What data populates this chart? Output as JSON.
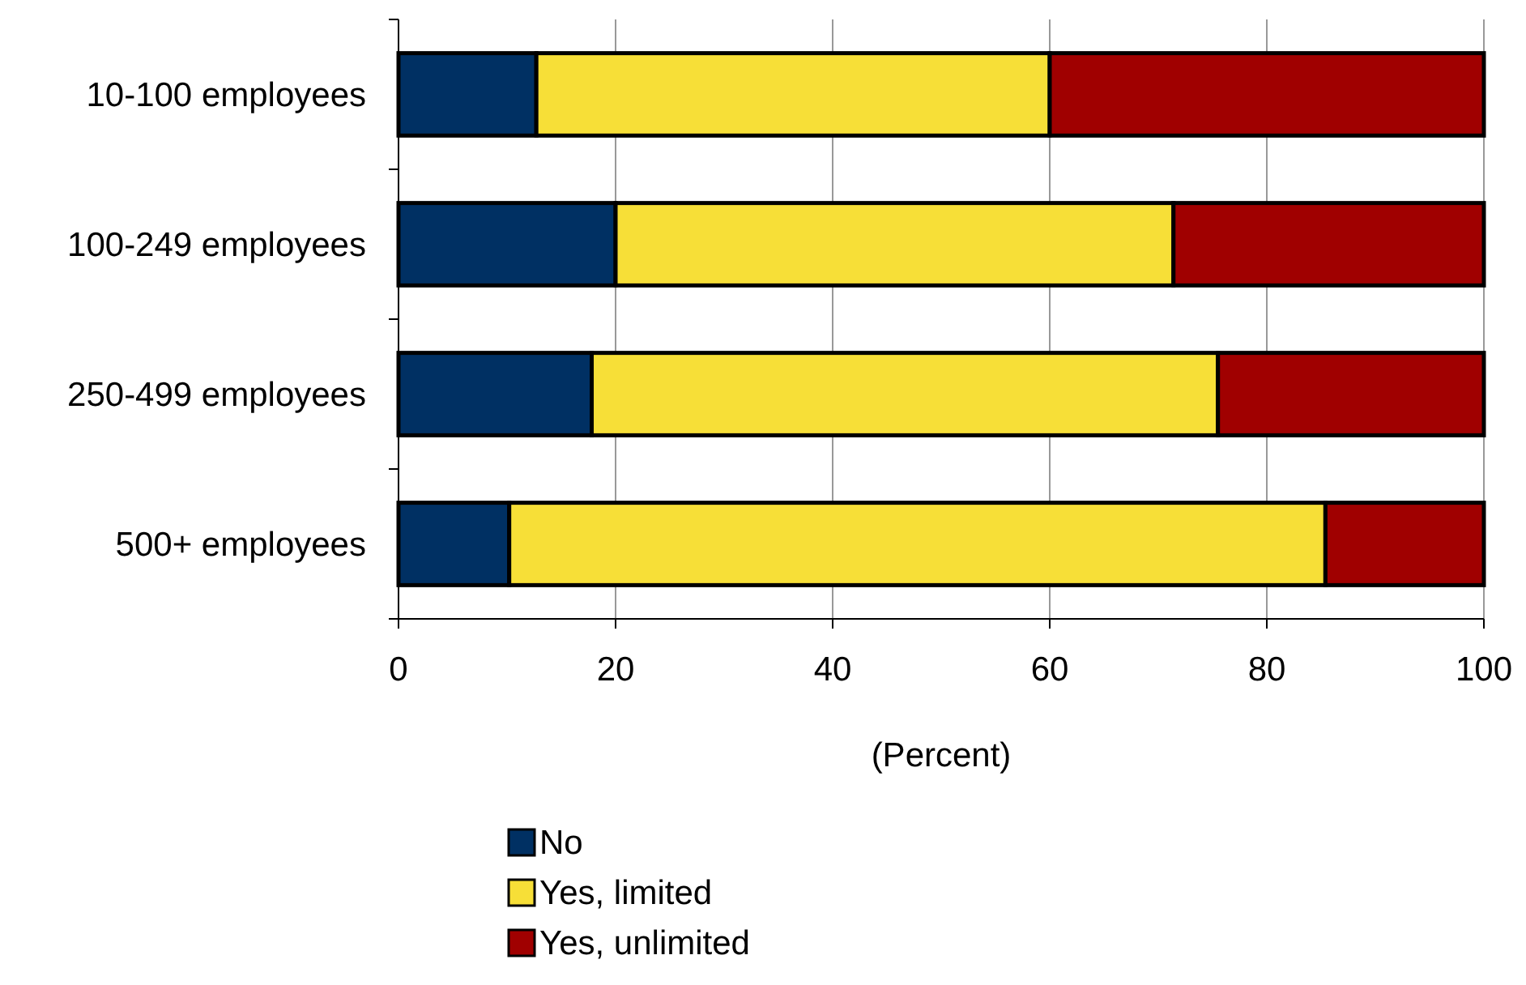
{
  "chart_data": {
    "type": "bar",
    "orientation": "horizontal",
    "stacked": true,
    "xlabel": "(Percent)",
    "categories": [
      "10-100 employees",
      "100-249 employees",
      "250-499 employees",
      "500+ employees"
    ],
    "series": [
      {
        "name": "No",
        "color": "#003063",
        "values": [
          12.7,
          20.0,
          17.8,
          10.2
        ]
      },
      {
        "name": "Yes, limited",
        "color": "#f7df37",
        "values": [
          47.3,
          51.4,
          57.7,
          75.2
        ]
      },
      {
        "name": "Yes, unlimited",
        "color": "#a00000",
        "values": [
          40.0,
          28.6,
          24.5,
          14.6
        ]
      }
    ],
    "xlim": [
      0,
      100
    ],
    "xticks": [
      0,
      20,
      40,
      60,
      80,
      100
    ],
    "grid": "x",
    "legend": "bottom"
  }
}
